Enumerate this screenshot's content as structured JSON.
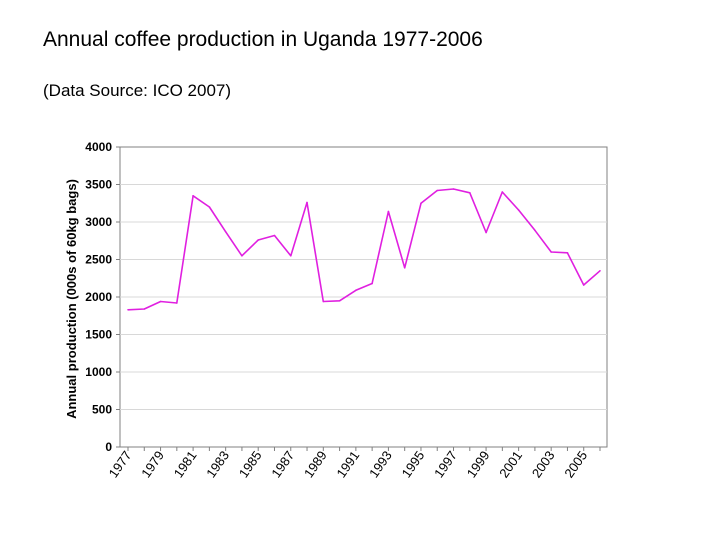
{
  "page": {
    "title": "Annual coffee production in Uganda 1977-2006",
    "subtitle": "(Data Source: ICO 2007)"
  },
  "chart_data": {
    "type": "line",
    "title": "Annual coffee production in Uganda 1977-2006",
    "xlabel": "",
    "ylabel": "Annual production (000s of 60kg bags)",
    "ylim": [
      0,
      4000
    ],
    "yticks": [
      0,
      500,
      1000,
      1500,
      2000,
      2500,
      3000,
      3500,
      4000
    ],
    "x_tick_labels": [
      "1977",
      "1979",
      "1981",
      "1983",
      "1985",
      "1987",
      "1989",
      "1991",
      "1993",
      "1995",
      "1997",
      "1999",
      "2001",
      "2003",
      "2005"
    ],
    "grid": true,
    "series": [
      {
        "name": "Annual production",
        "color": "#e020e0",
        "x": [
          1977,
          1978,
          1979,
          1980,
          1981,
          1982,
          1983,
          1984,
          1985,
          1986,
          1987,
          1988,
          1989,
          1990,
          1991,
          1992,
          1993,
          1994,
          1995,
          1996,
          1997,
          1998,
          1999,
          2000,
          2001,
          2002,
          2003,
          2004,
          2005,
          2006
        ],
        "values": [
          1830,
          1840,
          1940,
          1920,
          3350,
          3200,
          2870,
          2550,
          2760,
          2820,
          2550,
          3260,
          1940,
          1950,
          2090,
          2180,
          3140,
          2390,
          3250,
          3420,
          3440,
          3390,
          2860,
          3400,
          3160,
          2890,
          2600,
          2590,
          2160,
          2350
        ]
      }
    ]
  }
}
